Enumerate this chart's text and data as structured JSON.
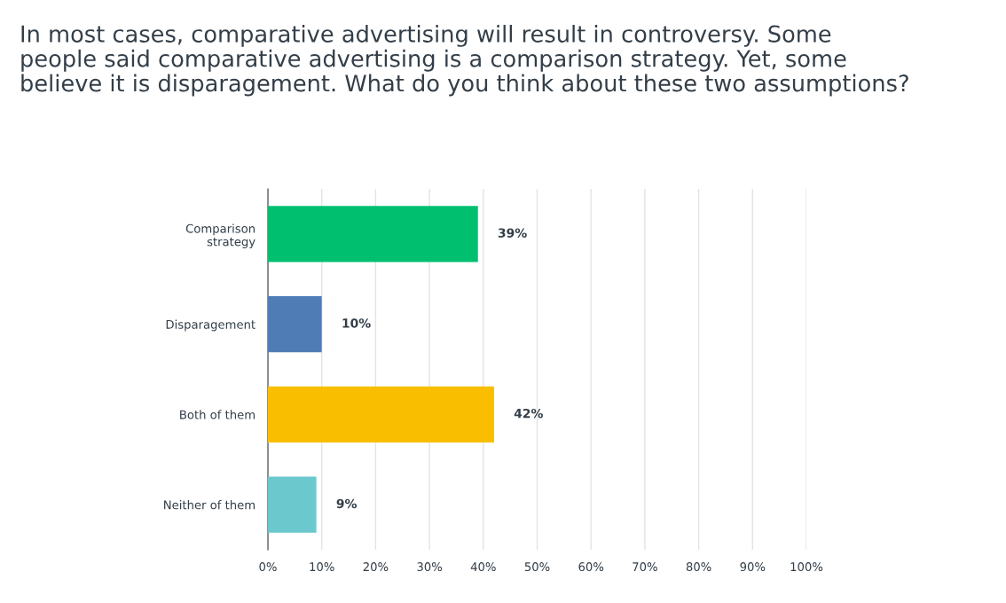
{
  "chart_data": {
    "type": "bar",
    "orientation": "horizontal",
    "title": "In most cases, comparative advertising will result in controversy. Some\npeople said comparative advertising is a comparison strategy. Yet, some\nbelieve it is disparagement. What do you think about these two assumptions?",
    "categories": [
      "Comparison\nstrategy",
      "Disparagement",
      "Both of them",
      "Neither of them"
    ],
    "values": [
      39,
      10,
      42,
      9
    ],
    "colors": [
      "#00bf6f",
      "#507cb6",
      "#f9be00",
      "#6bc8cd"
    ],
    "value_labels": [
      "39%",
      "10%",
      "42%",
      "9%"
    ],
    "xlim": [
      0,
      100
    ],
    "xticks": [
      {
        "value": 0,
        "label": "0%"
      },
      {
        "value": 10,
        "label": "10%"
      },
      {
        "value": 20,
        "label": "20%"
      },
      {
        "value": 30,
        "label": "30%"
      },
      {
        "value": 40,
        "label": "40%"
      },
      {
        "value": 50,
        "label": "50%"
      },
      {
        "value": 60,
        "label": "60%"
      },
      {
        "value": 70,
        "label": "70%"
      },
      {
        "value": 80,
        "label": "80%"
      },
      {
        "value": 90,
        "label": "90%"
      },
      {
        "value": 100,
        "label": "100%"
      }
    ],
    "grid": "x",
    "legend": false
  }
}
